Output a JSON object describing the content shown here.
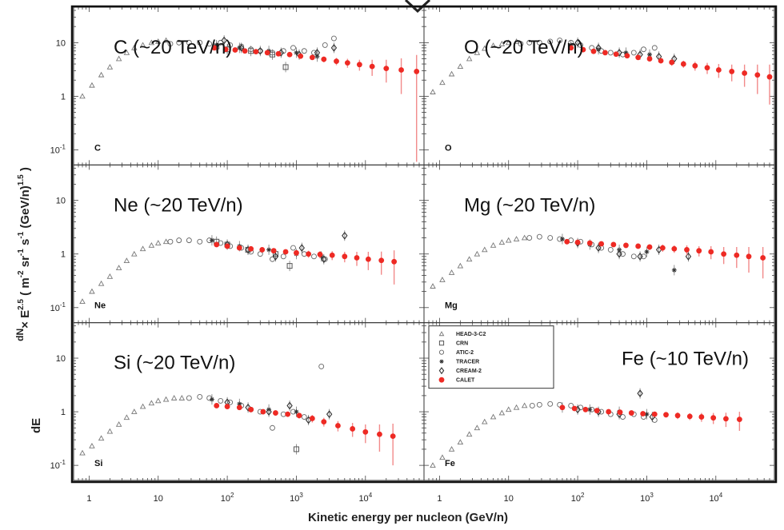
{
  "figure": {
    "xlabel": "Kinetic energy per nucleon (GeV/n)",
    "ylabel_parts": {
      "frac_top": "dN",
      "frac_bottom": "dE",
      "times": "× E",
      "exp": "2.5",
      "units": " ( m",
      "u_exp1": "-2",
      "sr": " sr",
      "u_exp2": "-1",
      "s": " s",
      "u_exp3": "-1",
      "gev": " (GeV/n)",
      "u_exp4": "1.5",
      "close": " )"
    },
    "x_ticks": [
      {
        "v": 1,
        "base": "1",
        "exp": ""
      },
      {
        "v": 10,
        "base": "10",
        "exp": ""
      },
      {
        "v": 100,
        "base": "10",
        "exp": "2"
      },
      {
        "v": 1000,
        "base": "10",
        "exp": "3"
      },
      {
        "v": 10000,
        "base": "10",
        "exp": "4"
      }
    ],
    "y_ticks": [
      {
        "v": 0.1,
        "base": "10",
        "exp": "-1"
      },
      {
        "v": 1,
        "base": "1",
        "exp": ""
      },
      {
        "v": 10,
        "base": "10",
        "exp": ""
      }
    ],
    "legend": [
      {
        "label": "HEAD-3-C2",
        "marker": "triangle"
      },
      {
        "label": "CRN",
        "marker": "square"
      },
      {
        "label": "ATIC-2",
        "marker": "circle"
      },
      {
        "label": "TRACER",
        "marker": "star"
      },
      {
        "label": "CREAM-2",
        "marker": "diamond"
      },
      {
        "label": "CALET",
        "marker": "red-dot"
      }
    ],
    "colors": {
      "calet": "#ee2a24",
      "calet_err": "#f28a8a",
      "other": "#555555",
      "frame": "#222222"
    }
  },
  "chart_data": [
    {
      "type": "scatter",
      "element": "C",
      "annotation": "C (~20 TeV/n)",
      "xscale": "log",
      "yscale": "log",
      "xlim": [
        0.7,
        60000
      ],
      "ylim": [
        0.06,
        40
      ],
      "series": [
        {
          "name": "HEAD-3-C2",
          "x": [
            0.8,
            1.1,
            1.5,
            2,
            2.7,
            3.5,
            4.5,
            6,
            8,
            10,
            13
          ],
          "y": [
            1.0,
            1.6,
            2.5,
            3.5,
            5.0,
            6.5,
            8.0,
            9.0,
            10.0,
            10.5,
            11.0
          ]
        },
        {
          "name": "CRN",
          "x": [
            70,
            100,
            220,
            450,
            700
          ],
          "y": [
            8.5,
            7.5,
            7.0,
            6.0,
            3.5
          ]
        },
        {
          "name": "ATIC-2",
          "x": [
            15,
            20,
            28,
            40,
            55,
            80,
            110,
            160,
            220,
            300,
            450,
            650,
            900,
            1300,
            1800,
            2600,
            3500
          ],
          "y": [
            9.5,
            10.0,
            10.0,
            10.0,
            9.5,
            10.0,
            9.0,
            8.5,
            7.5,
            7.0,
            6.5,
            7.0,
            8.0,
            7.0,
            6.5,
            9.0,
            12.0
          ]
        },
        {
          "name": "TRACER",
          "x": [
            70,
            150,
            400,
            1000,
            2000
          ],
          "y": [
            9.0,
            8.0,
            7.0,
            6.5,
            5.5
          ]
        },
        {
          "name": "CREAM-2",
          "x": [
            90,
            160,
            300,
            600,
            1100,
            2000,
            3500
          ],
          "y": [
            11.0,
            8.0,
            7.0,
            6.5,
            6.0,
            6.5,
            8.0
          ]
        },
        {
          "name": "CALET",
          "x": [
            65,
            95,
            130,
            180,
            260,
            380,
            550,
            800,
            1150,
            1700,
            2500,
            3800,
            5500,
            8200,
            12500,
            20000,
            33000,
            55000
          ],
          "y": [
            8.0,
            7.5,
            7.3,
            7.0,
            6.8,
            6.5,
            6.2,
            6.0,
            5.6,
            5.3,
            4.9,
            4.5,
            4.2,
            3.9,
            3.6,
            3.3,
            3.1,
            2.9
          ],
          "err": [
            0.4,
            0.4,
            0.4,
            0.4,
            0.4,
            0.4,
            0.4,
            0.5,
            0.5,
            0.5,
            0.6,
            0.7,
            0.8,
            0.9,
            1.2,
            1.5,
            2.0,
            3.0
          ]
        }
      ]
    },
    {
      "type": "scatter",
      "element": "O",
      "annotation": "O (~20 TeV/n)",
      "xscale": "log",
      "yscale": "log",
      "xlim": [
        0.7,
        60000
      ],
      "ylim": [
        0.06,
        40
      ],
      "series": [
        {
          "name": "HEAD-3-C2",
          "x": [
            0.8,
            1.1,
            1.5,
            2,
            2.7,
            3.5,
            4.5,
            6,
            8,
            10,
            13
          ],
          "y": [
            1.2,
            1.8,
            2.6,
            3.6,
            5.0,
            6.5,
            7.8,
            8.8,
            9.5,
            10.0,
            10.5
          ]
        },
        {
          "name": "ATIC-2",
          "x": [
            15,
            20,
            28,
            40,
            55,
            80,
            110,
            160,
            220,
            300,
            450,
            650,
            900,
            1300
          ],
          "y": [
            9.5,
            10.0,
            10.0,
            10.5,
            11.0,
            10.0,
            9.0,
            8.0,
            7.0,
            6.5,
            6.0,
            6.5,
            7.5,
            8.0
          ]
        },
        {
          "name": "TRACER",
          "x": [
            80,
            200,
            500,
            1100
          ],
          "y": [
            9.0,
            7.5,
            6.5,
            6.0
          ]
        },
        {
          "name": "CREAM-2",
          "x": [
            100,
            200,
            400,
            800,
            1500,
            2500
          ],
          "y": [
            10.0,
            8.0,
            6.5,
            6.0,
            5.5,
            5.0
          ]
        },
        {
          "name": "CALET",
          "x": [
            80,
            120,
            170,
            250,
            360,
            520,
            750,
            1100,
            1600,
            2300,
            3400,
            5000,
            7500,
            11000,
            17000,
            26000,
            40000,
            60000
          ],
          "y": [
            8.0,
            7.4,
            6.9,
            6.5,
            6.1,
            5.7,
            5.3,
            5.0,
            4.6,
            4.3,
            4.0,
            3.7,
            3.4,
            3.1,
            2.9,
            2.7,
            2.5,
            2.3
          ],
          "err": [
            0.4,
            0.4,
            0.4,
            0.4,
            0.4,
            0.4,
            0.4,
            0.5,
            0.5,
            0.6,
            0.6,
            0.7,
            0.8,
            0.9,
            1.0,
            1.2,
            1.4,
            1.6
          ]
        }
      ]
    },
    {
      "type": "scatter",
      "element": "Ne",
      "annotation": "Ne (~20 TeV/n)",
      "xscale": "log",
      "yscale": "log",
      "xlim": [
        0.7,
        60000
      ],
      "ylim": [
        0.06,
        40
      ],
      "series": [
        {
          "name": "HEAD-3-C2",
          "x": [
            0.8,
            1.1,
            1.5,
            2,
            2.7,
            3.5,
            4.5,
            6,
            8,
            10,
            13
          ],
          "y": [
            0.13,
            0.2,
            0.28,
            0.38,
            0.55,
            0.75,
            1.0,
            1.25,
            1.45,
            1.6,
            1.7
          ]
        },
        {
          "name": "CRN",
          "x": [
            70,
            100,
            200,
            500,
            800
          ],
          "y": [
            1.7,
            1.5,
            1.2,
            1.0,
            0.6
          ]
        },
        {
          "name": "ATIC-2",
          "x": [
            15,
            20,
            28,
            40,
            55,
            80,
            110,
            160,
            220,
            300,
            450,
            650,
            900,
            1300,
            1800,
            2600
          ],
          "y": [
            1.7,
            1.8,
            1.8,
            1.7,
            1.8,
            1.6,
            1.4,
            1.3,
            1.1,
            1.0,
            0.8,
            0.9,
            1.3,
            1.0,
            0.9,
            0.8
          ]
        },
        {
          "name": "TRACER",
          "x": [
            60,
            150,
            400,
            1000,
            2300
          ],
          "y": [
            1.8,
            1.4,
            1.2,
            1.0,
            0.9
          ]
        },
        {
          "name": "CREAM-2",
          "x": [
            100,
            200,
            500,
            1200,
            2500,
            5000
          ],
          "y": [
            1.5,
            1.2,
            0.9,
            1.3,
            0.8,
            2.2
          ]
        },
        {
          "name": "CALET",
          "x": [
            70,
            100,
            150,
            220,
            320,
            470,
            700,
            1000,
            1500,
            2200,
            3300,
            5000,
            7500,
            11000,
            17000,
            26000
          ],
          "y": [
            1.5,
            1.4,
            1.3,
            1.25,
            1.2,
            1.15,
            1.1,
            1.05,
            1.0,
            0.98,
            0.95,
            0.9,
            0.85,
            0.8,
            0.76,
            0.72
          ],
          "err": [
            0.1,
            0.1,
            0.1,
            0.1,
            0.1,
            0.1,
            0.12,
            0.12,
            0.15,
            0.15,
            0.18,
            0.2,
            0.25,
            0.3,
            0.35,
            0.45
          ]
        }
      ]
    },
    {
      "type": "scatter",
      "element": "Mg",
      "annotation": "Mg (~20 TeV/n)",
      "xscale": "log",
      "yscale": "log",
      "xlim": [
        0.7,
        60000
      ],
      "ylim": [
        0.06,
        40
      ],
      "series": [
        {
          "name": "HEAD-3-C2",
          "x": [
            0.8,
            1.1,
            1.5,
            2,
            2.7,
            3.5,
            4.5,
            6,
            8,
            10,
            13,
            17
          ],
          "y": [
            0.25,
            0.33,
            0.45,
            0.6,
            0.8,
            1.0,
            1.2,
            1.45,
            1.65,
            1.8,
            1.9,
            2.0
          ]
        },
        {
          "name": "ATIC-2",
          "x": [
            20,
            28,
            40,
            55,
            80,
            110,
            160,
            220,
            300,
            450,
            650,
            900
          ],
          "y": [
            2.0,
            2.1,
            2.0,
            1.9,
            1.8,
            1.7,
            1.5,
            1.3,
            1.2,
            1.0,
            0.9,
            0.9
          ]
        },
        {
          "name": "TRACER",
          "x": [
            60,
            150,
            400,
            1000,
            2500
          ],
          "y": [
            1.9,
            1.5,
            1.2,
            1.1,
            0.5
          ]
        },
        {
          "name": "CREAM-2",
          "x": [
            100,
            200,
            400,
            800,
            1500,
            4000
          ],
          "y": [
            1.6,
            1.3,
            1.0,
            0.9,
            1.2,
            0.9
          ]
        },
        {
          "name": "CALET",
          "x": [
            70,
            100,
            150,
            220,
            330,
            500,
            750,
            1100,
            1700,
            2500,
            3800,
            5700,
            8500,
            13000,
            20000,
            30000,
            48000
          ],
          "y": [
            1.7,
            1.65,
            1.6,
            1.55,
            1.5,
            1.45,
            1.4,
            1.35,
            1.3,
            1.25,
            1.2,
            1.15,
            1.1,
            1.0,
            0.95,
            0.9,
            0.85
          ],
          "err": [
            0.15,
            0.15,
            0.15,
            0.15,
            0.15,
            0.15,
            0.15,
            0.17,
            0.2,
            0.2,
            0.25,
            0.25,
            0.3,
            0.35,
            0.4,
            0.45,
            0.5
          ]
        }
      ]
    },
    {
      "type": "scatter",
      "element": "Si",
      "annotation": "Si (~20 TeV/n)",
      "xscale": "log",
      "yscale": "log",
      "xlim": [
        0.7,
        60000
      ],
      "ylim": [
        0.06,
        40
      ],
      "series": [
        {
          "name": "HEAD-3-C2",
          "x": [
            0.8,
            1.1,
            1.5,
            2,
            2.7,
            3.5,
            4.5,
            6,
            8,
            10,
            13,
            17,
            22
          ],
          "y": [
            0.17,
            0.23,
            0.32,
            0.43,
            0.58,
            0.78,
            1.0,
            1.25,
            1.45,
            1.6,
            1.7,
            1.8,
            1.8
          ]
        },
        {
          "name": "CRN",
          "x": [
            1000
          ],
          "y": [
            0.2
          ]
        },
        {
          "name": "ATIC-2",
          "x": [
            28,
            40,
            55,
            80,
            110,
            160,
            220,
            300,
            450,
            650,
            900,
            1300,
            2300
          ],
          "y": [
            1.8,
            1.9,
            1.8,
            1.6,
            1.5,
            1.3,
            1.1,
            1.0,
            0.5,
            0.9,
            1.0,
            0.8,
            7.0
          ]
        },
        {
          "name": "TRACER",
          "x": [
            60,
            150,
            400,
            1000
          ],
          "y": [
            1.7,
            1.4,
            1.1,
            1.0
          ]
        },
        {
          "name": "CREAM-2",
          "x": [
            100,
            200,
            400,
            800,
            1500,
            3000
          ],
          "y": [
            1.5,
            1.2,
            1.0,
            1.3,
            0.7,
            0.9
          ]
        },
        {
          "name": "CALET",
          "x": [
            70,
            100,
            150,
            220,
            330,
            500,
            750,
            1100,
            1700,
            2500,
            4000,
            6500,
            10000,
            16000,
            25000
          ],
          "y": [
            1.3,
            1.25,
            1.2,
            1.1,
            1.0,
            0.95,
            0.9,
            0.85,
            0.75,
            0.65,
            0.55,
            0.48,
            0.42,
            0.38,
            0.35
          ],
          "err": [
            0.1,
            0.1,
            0.1,
            0.1,
            0.1,
            0.1,
            0.1,
            0.1,
            0.12,
            0.12,
            0.12,
            0.14,
            0.16,
            0.2,
            0.25
          ]
        }
      ]
    },
    {
      "type": "scatter",
      "element": "Fe",
      "annotation": "Fe (~10 TeV/n)",
      "xscale": "log",
      "yscale": "log",
      "xlim": [
        0.7,
        60000
      ],
      "ylim": [
        0.06,
        40
      ],
      "series": [
        {
          "name": "HEAD-3-C2",
          "x": [
            0.8,
            1.1,
            1.5,
            2,
            2.7,
            3.5,
            4.5,
            6,
            8,
            10,
            13,
            17
          ],
          "y": [
            0.1,
            0.14,
            0.2,
            0.27,
            0.38,
            0.5,
            0.65,
            0.8,
            0.95,
            1.1,
            1.2,
            1.3
          ]
        },
        {
          "name": "ATIC-2",
          "x": [
            22,
            28,
            40,
            55,
            80,
            110,
            160,
            220,
            300,
            450,
            650,
            900,
            1300
          ],
          "y": [
            1.3,
            1.35,
            1.4,
            1.35,
            1.3,
            1.2,
            1.1,
            1.0,
            0.9,
            0.8,
            0.9,
            0.8,
            0.7
          ]
        },
        {
          "name": "TRACER",
          "x": [
            60,
            150,
            400,
            1000
          ],
          "y": [
            1.2,
            1.1,
            1.0,
            0.9
          ]
        },
        {
          "name": "CREAM-2",
          "x": [
            100,
            200,
            400,
            800,
            1200
          ],
          "y": [
            1.1,
            1.0,
            0.9,
            2.2,
            0.8
          ]
        },
        {
          "name": "CALET",
          "x": [
            60,
            90,
            130,
            190,
            280,
            410,
            600,
            880,
            1300,
            1900,
            2800,
            4200,
            6200,
            9200,
            14000,
            22000
          ],
          "y": [
            1.2,
            1.15,
            1.1,
            1.05,
            1.0,
            0.98,
            0.95,
            0.92,
            0.9,
            0.88,
            0.85,
            0.82,
            0.8,
            0.77,
            0.74,
            0.72
          ],
          "err": [
            0.1,
            0.1,
            0.1,
            0.1,
            0.1,
            0.1,
            0.1,
            0.1,
            0.1,
            0.1,
            0.12,
            0.12,
            0.15,
            0.18,
            0.22,
            0.28
          ]
        }
      ]
    }
  ]
}
